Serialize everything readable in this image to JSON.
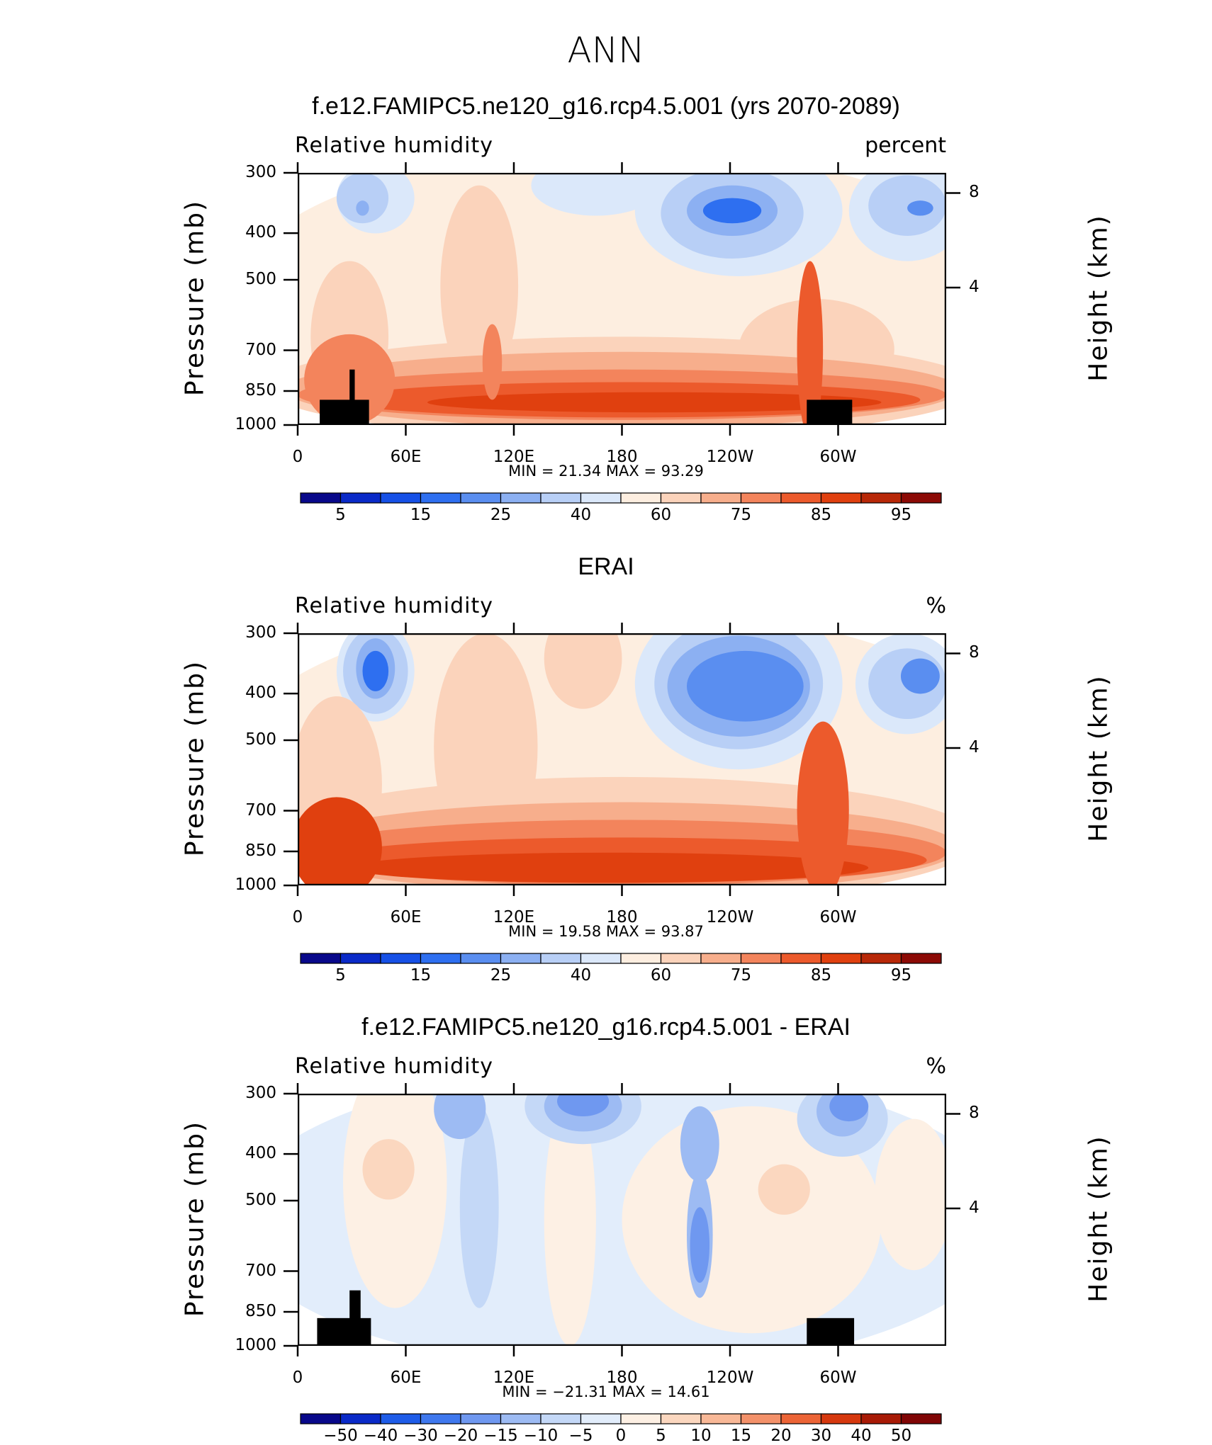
{
  "main_title": "ANN",
  "panels": [
    {
      "title": "f.e12.FAMIPC5.ne120_g16.rcp4.5.001 (yrs 2070-2089)",
      "variable": "Relative humidity",
      "unit": "percent",
      "minmax": "MIN =   21.34   MAX =   93.29",
      "y_label": "Pressure (mb)",
      "y2_label": "Height (km)",
      "colorbar": [
        "5",
        "15",
        "25",
        "40",
        "60",
        "75",
        "85",
        "95"
      ],
      "palette": "full"
    },
    {
      "title": "ERAI",
      "variable": "Relative humidity",
      "unit": "%",
      "minmax": "MIN =   19.58   MAX =   93.87",
      "y_label": "Pressure (mb)",
      "y2_label": "Height (km)",
      "colorbar": [
        "5",
        "15",
        "25",
        "40",
        "60",
        "75",
        "85",
        "95"
      ],
      "palette": "full"
    },
    {
      "title": "f.e12.FAMIPC5.ne120_g16.rcp4.5.001 - ERAI",
      "variable": "Relative humidity",
      "unit": "%",
      "minmax": "MIN = −21.31   MAX =   14.61",
      "y_label": "Pressure (mb)",
      "y2_label": "Height (km)",
      "colorbar": [
        "−50",
        "−40",
        "−30",
        "−20",
        "−15",
        "−10",
        "−5",
        "0",
        "5",
        "10",
        "15",
        "20",
        "30",
        "40",
        "50"
      ],
      "palette": "diff"
    }
  ],
  "axes": {
    "x_ticks": [
      "0",
      "60E",
      "120E",
      "180",
      "120W",
      "60W"
    ],
    "y_ticks": [
      "300",
      "400",
      "500",
      "700",
      "850",
      "1000"
    ],
    "y2_ticks": [
      "8",
      "4"
    ]
  },
  "colors": {
    "full": [
      "#08088a",
      "#0a2ac8",
      "#1650e6",
      "#2e6ff0",
      "#5a8ef0",
      "#8cb0f2",
      "#b8cff6",
      "#dbe8fa",
      "#fdeee0",
      "#fbd3bb",
      "#f7ae8c",
      "#f3845c",
      "#ec5a2c",
      "#e0400f",
      "#b82808",
      "#8c0a05"
    ],
    "diff": [
      "#08088a",
      "#0a2ac8",
      "#1e5ce8",
      "#3f78ee",
      "#6f98f0",
      "#9dbbf3",
      "#c4d8f7",
      "#e2edfb",
      "#fdf0e4",
      "#fbd7bf",
      "#f8b897",
      "#f3916a",
      "#ec6436",
      "#d6380e",
      "#a81a06",
      "#800505"
    ]
  },
  "chart_data": [
    {
      "type": "heatmap",
      "title": "f.e12.FAMIPC5.ne120_g16.rcp4.5.001 (yrs 2070-2089)",
      "variable": "Relative humidity",
      "units": "percent",
      "x": [
        "0",
        "60E",
        "120E",
        "180",
        "120W",
        "60W"
      ],
      "y_pressure_mb": [
        300,
        400,
        500,
        700,
        850,
        1000
      ],
      "y2_height_km": [
        8,
        4
      ],
      "min": 21.34,
      "max": 93.29,
      "contour_levels": [
        5,
        10,
        15,
        20,
        25,
        30,
        40,
        50,
        60,
        65,
        70,
        75,
        80,
        85,
        90,
        95
      ]
    },
    {
      "type": "heatmap",
      "title": "ERAI",
      "variable": "Relative humidity",
      "units": "%",
      "x": [
        "0",
        "60E",
        "120E",
        "180",
        "120W",
        "60W"
      ],
      "y_pressure_mb": [
        300,
        400,
        500,
        700,
        850,
        1000
      ],
      "y2_height_km": [
        8,
        4
      ],
      "min": 19.58,
      "max": 93.87,
      "contour_levels": [
        5,
        10,
        15,
        20,
        25,
        30,
        40,
        50,
        60,
        65,
        70,
        75,
        80,
        85,
        90,
        95
      ]
    },
    {
      "type": "heatmap",
      "title": "f.e12.FAMIPC5.ne120_g16.rcp4.5.001 - ERAI",
      "variable": "Relative humidity",
      "units": "%",
      "x": [
        "0",
        "60E",
        "120E",
        "180",
        "120W",
        "60W"
      ],
      "y_pressure_mb": [
        300,
        400,
        500,
        700,
        850,
        1000
      ],
      "y2_height_km": [
        8,
        4
      ],
      "min": -21.31,
      "max": 14.61,
      "contour_levels": [
        -50,
        -40,
        -30,
        -20,
        -15,
        -10,
        -5,
        0,
        5,
        10,
        15,
        20,
        30,
        40,
        50
      ]
    }
  ]
}
